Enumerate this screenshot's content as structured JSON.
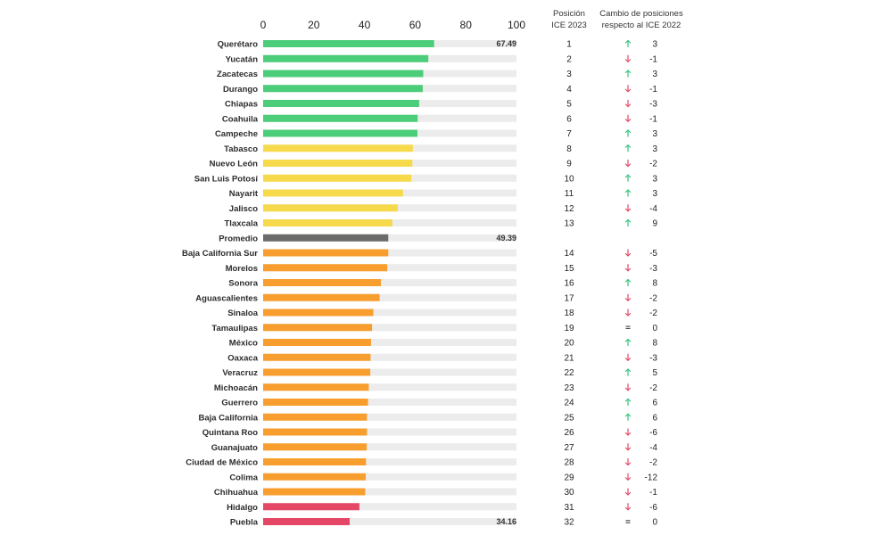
{
  "colors": {
    "green": "#4ccd7a",
    "yellow": "#f7d94c",
    "orange": "#f79e2e",
    "red": "#e54866",
    "average": "#6b6b6b",
    "track": "#ececec",
    "arrow_up": "#2fc57a",
    "arrow_down": "#e54866"
  },
  "headers": {
    "rank_line1": "Posición",
    "rank_line2": "ICE 2023",
    "change_line1": "Cambio de posiciones",
    "change_line2": "respecto al ICE 2022"
  },
  "chart_data": {
    "type": "bar",
    "orientation": "horizontal",
    "xlim": [
      0,
      100
    ],
    "x_ticks": [
      "0",
      "20",
      "40",
      "60",
      "80",
      "100"
    ],
    "grid": false,
    "rows": [
      {
        "name": "Querétaro",
        "value": 67.49,
        "group": "green",
        "value_label": "67.49",
        "rank": "1",
        "trend": "up",
        "change": "3"
      },
      {
        "name": "Yucatán",
        "value": 65.2,
        "group": "green",
        "rank": "2",
        "trend": "down",
        "change": "-1"
      },
      {
        "name": "Zacatecas",
        "value": 63.2,
        "group": "green",
        "rank": "3",
        "trend": "up",
        "change": "3"
      },
      {
        "name": "Durango",
        "value": 63.0,
        "group": "green",
        "rank": "4",
        "trend": "down",
        "change": "-1"
      },
      {
        "name": "Chiapas",
        "value": 61.6,
        "group": "green",
        "rank": "5",
        "trend": "down",
        "change": "-3"
      },
      {
        "name": "Coahuila",
        "value": 61.0,
        "group": "green",
        "rank": "6",
        "trend": "down",
        "change": "-1"
      },
      {
        "name": "Campeche",
        "value": 60.9,
        "group": "green",
        "rank": "7",
        "trend": "up",
        "change": "3"
      },
      {
        "name": "Tabasco",
        "value": 59.1,
        "group": "yellow",
        "rank": "8",
        "trend": "up",
        "change": "3"
      },
      {
        "name": "Nuevo León",
        "value": 58.9,
        "group": "yellow",
        "rank": "9",
        "trend": "down",
        "change": "-2"
      },
      {
        "name": "San Luis Potosí",
        "value": 58.5,
        "group": "yellow",
        "rank": "10",
        "trend": "up",
        "change": "3"
      },
      {
        "name": "Nayarit",
        "value": 55.2,
        "group": "yellow",
        "rank": "11",
        "trend": "up",
        "change": "3"
      },
      {
        "name": "Jalisco",
        "value": 53.1,
        "group": "yellow",
        "rank": "12",
        "trend": "down",
        "change": "-4"
      },
      {
        "name": "Tlaxcala",
        "value": 51.0,
        "group": "yellow",
        "rank": "13",
        "trend": "up",
        "change": "9"
      },
      {
        "name": "Promedio",
        "value": 49.39,
        "group": "average",
        "value_label": "49.39",
        "rank": "",
        "trend": "",
        "change": ""
      },
      {
        "name": "Baja California Sur",
        "value": 49.4,
        "group": "orange",
        "rank": "14",
        "trend": "down",
        "change": "-5"
      },
      {
        "name": "Morelos",
        "value": 49.0,
        "group": "orange",
        "rank": "15",
        "trend": "down",
        "change": "-3"
      },
      {
        "name": "Sonora",
        "value": 46.5,
        "group": "orange",
        "rank": "16",
        "trend": "up",
        "change": "8"
      },
      {
        "name": "Aguascalientes",
        "value": 46.0,
        "group": "orange",
        "rank": "17",
        "trend": "down",
        "change": "-2"
      },
      {
        "name": "Sinaloa",
        "value": 43.5,
        "group": "orange",
        "rank": "18",
        "trend": "down",
        "change": "-2"
      },
      {
        "name": "Tamaulipas",
        "value": 43.0,
        "group": "orange",
        "rank": "19",
        "trend": "equal",
        "change": "0"
      },
      {
        "name": "México",
        "value": 42.6,
        "group": "orange",
        "rank": "20",
        "trend": "up",
        "change": "8"
      },
      {
        "name": "Oaxaca",
        "value": 42.4,
        "group": "orange",
        "rank": "21",
        "trend": "down",
        "change": "-3"
      },
      {
        "name": "Veracruz",
        "value": 42.3,
        "group": "orange",
        "rank": "22",
        "trend": "up",
        "change": "5"
      },
      {
        "name": "Michoacán",
        "value": 41.7,
        "group": "orange",
        "rank": "23",
        "trend": "down",
        "change": "-2"
      },
      {
        "name": "Guerrero",
        "value": 41.4,
        "group": "orange",
        "rank": "24",
        "trend": "up",
        "change": "6"
      },
      {
        "name": "Baja California",
        "value": 41.0,
        "group": "orange",
        "rank": "25",
        "trend": "up",
        "change": "6"
      },
      {
        "name": "Quintana Roo",
        "value": 41.0,
        "group": "orange",
        "rank": "26",
        "trend": "down",
        "change": "-6"
      },
      {
        "name": "Guanajuato",
        "value": 40.9,
        "group": "orange",
        "rank": "27",
        "trend": "down",
        "change": "-4"
      },
      {
        "name": "Ciudad de México",
        "value": 40.6,
        "group": "orange",
        "rank": "28",
        "trend": "down",
        "change": "-2"
      },
      {
        "name": "Colima",
        "value": 40.5,
        "group": "orange",
        "rank": "29",
        "trend": "down",
        "change": "-12"
      },
      {
        "name": "Chihuahua",
        "value": 40.3,
        "group": "orange",
        "rank": "30",
        "trend": "down",
        "change": "-1"
      },
      {
        "name": "Hidalgo",
        "value": 38.0,
        "group": "red",
        "rank": "31",
        "trend": "down",
        "change": "-6"
      },
      {
        "name": "Puebla",
        "value": 34.16,
        "group": "red",
        "value_label": "34.16",
        "rank": "32",
        "trend": "equal",
        "change": "0"
      }
    ]
  }
}
